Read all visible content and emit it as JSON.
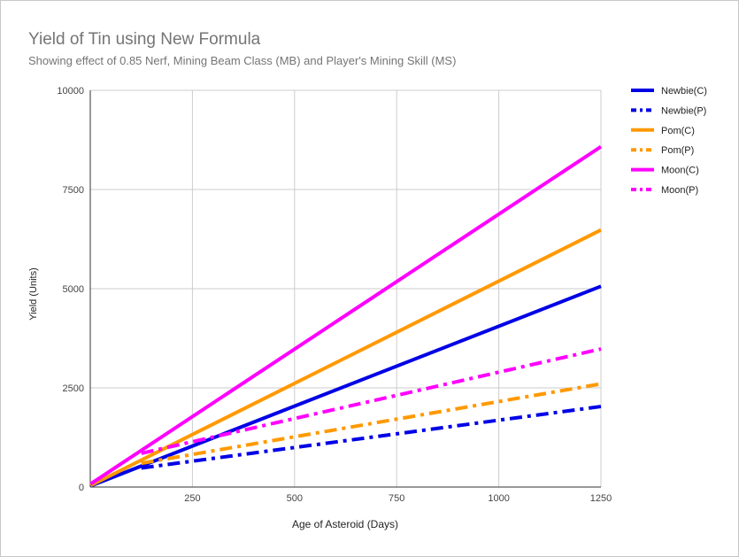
{
  "chart_data": {
    "type": "line",
    "title": "Yield of Tin using New Formula",
    "subtitle": "Showing effect of 0.85 Nerf, Mining Beam Class (MB) and Player's Mining Skill (MS)",
    "xlabel": "Age of Asteroid (Days)",
    "ylabel": "Yield (Units)",
    "xlim": [
      0,
      1250
    ],
    "ylim": [
      0,
      10000
    ],
    "xticks": [
      "250",
      "500",
      "750",
      "1000",
      "1250"
    ],
    "yticks": [
      "0",
      "2500",
      "5000",
      "7500",
      "10000"
    ],
    "grid": true,
    "legend_position": "right",
    "series": [
      {
        "name": "Newbie(C)",
        "color": "#0000e6",
        "dash": "solid",
        "x": [
          1,
          1250
        ],
        "y": [
          30,
          5060
        ]
      },
      {
        "name": "Newbie(P)",
        "color": "#0000e6",
        "dash": "dashdot",
        "x": [
          125,
          1250
        ],
        "y": [
          480,
          2030
        ]
      },
      {
        "name": "Pom(C)",
        "color": "#ff9900",
        "dash": "solid",
        "x": [
          1,
          1250
        ],
        "y": [
          40,
          6480
        ]
      },
      {
        "name": "Pom(P)",
        "color": "#ff9900",
        "dash": "dashdot",
        "x": [
          125,
          1250
        ],
        "y": [
          600,
          2600
        ]
      },
      {
        "name": "Moon(C)",
        "color": "#ff00ff",
        "dash": "solid",
        "x": [
          1,
          1250
        ],
        "y": [
          80,
          8580
        ]
      },
      {
        "name": "Moon(P)",
        "color": "#ff00ff",
        "dash": "dashdot",
        "x": [
          125,
          1250
        ],
        "y": [
          850,
          3480
        ]
      }
    ]
  }
}
